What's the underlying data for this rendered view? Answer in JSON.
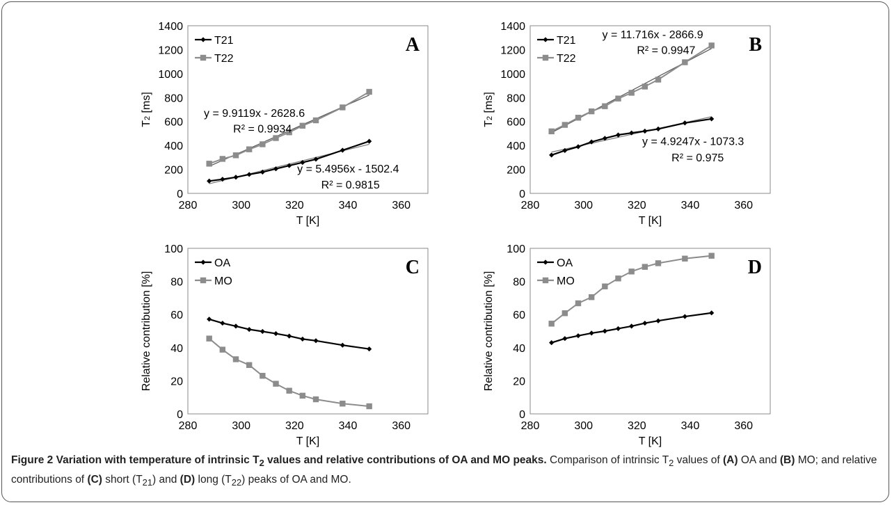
{
  "caption": {
    "title_pre": "Figure 2 Variation with temperature of intrinsic T",
    "title_sub": "2",
    "title_post": " values and relative contributions of OA and MO peaks.",
    "t1": " Comparison of intrinsic T",
    "t1_sub": "2",
    "t2": " values of ",
    "bA": "(A)",
    "t3": " OA and ",
    "bB": "(B)",
    "t4": " MO; and relative contributions of ",
    "bC": "(C)",
    "t5": " short (T",
    "t5_sub": "21",
    "t6": ") and ",
    "bD": "(D)",
    "t7": " long (T",
    "t7_sub": "22",
    "t8": ") peaks of OA and MO."
  },
  "chart_data": [
    {
      "panel": "A",
      "type": "line",
      "xlabel": "T [K]",
      "ylabel_main": "T",
      "ylabel_sub": "2",
      "ylabel_unit": " [ms]",
      "xlim": [
        280,
        370
      ],
      "ylim": [
        0,
        1400
      ],
      "xticks": [
        280,
        300,
        320,
        340,
        360
      ],
      "yticks": [
        0,
        200,
        400,
        600,
        800,
        1000,
        1200,
        1400
      ],
      "legend_position": "top-left",
      "series": [
        {
          "name": "T21",
          "color": "#000000",
          "marker": "diamond",
          "x": [
            288,
            293,
            298,
            303,
            308,
            313,
            318,
            323,
            328,
            338,
            348
          ],
          "y": [
            103,
            118,
            135,
            158,
            178,
            205,
            232,
            258,
            285,
            360,
            435
          ],
          "trendline": {
            "slope": 5.4956,
            "intercept": -1502.4,
            "color": "#777777"
          }
        },
        {
          "name": "T22",
          "color": "#8c8c8c",
          "marker": "square",
          "x": [
            288,
            293,
            298,
            303,
            308,
            313,
            318,
            323,
            328,
            338,
            348
          ],
          "y": [
            248,
            288,
            318,
            368,
            410,
            462,
            510,
            565,
            610,
            718,
            848
          ],
          "trendline": {
            "slope": 9.9119,
            "intercept": -2628.6,
            "color": "#555555"
          }
        }
      ],
      "annotations": [
        {
          "eq": "y = 9.9119x - 2628.6",
          "r2": "R² = 0.9934",
          "at": [
            286,
            640
          ],
          "r2_at": [
            297,
            508
          ]
        },
        {
          "eq": "y = 5.4956x - 1502.4",
          "r2": "R² = 0.9815",
          "at": [
            321,
            175
          ],
          "r2_at": [
            330,
            40
          ]
        }
      ]
    },
    {
      "panel": "B",
      "type": "line",
      "xlabel": "T [K]",
      "ylabel_main": "T",
      "ylabel_sub": "2",
      "ylabel_unit": " [ms]",
      "xlim": [
        280,
        370
      ],
      "ylim": [
        0,
        1400
      ],
      "xticks": [
        280,
        300,
        320,
        340,
        360
      ],
      "yticks": [
        0,
        200,
        400,
        600,
        800,
        1000,
        1200,
        1400
      ],
      "legend_position": "top-left",
      "series": [
        {
          "name": "T21",
          "color": "#000000",
          "marker": "diamond",
          "x": [
            288,
            293,
            298,
            303,
            308,
            313,
            318,
            323,
            328,
            338,
            348
          ],
          "y": [
            320,
            358,
            390,
            430,
            460,
            488,
            505,
            520,
            538,
            588,
            622
          ],
          "trendline": {
            "slope": 4.9247,
            "intercept": -1073.3,
            "color": "#777777"
          }
        },
        {
          "name": "T22",
          "color": "#8c8c8c",
          "marker": "square",
          "x": [
            288,
            293,
            298,
            303,
            308,
            313,
            318,
            323,
            328,
            338,
            348
          ],
          "y": [
            518,
            572,
            632,
            685,
            728,
            792,
            840,
            892,
            950,
            1095,
            1235
          ],
          "trendline": {
            "slope": 11.716,
            "intercept": -2866.9,
            "color": "#555555"
          }
        }
      ],
      "annotations": [
        {
          "eq": "y = 11.716x - 2866.9",
          "r2": "R² = 0.9947",
          "at": [
            307,
            1295
          ],
          "r2_at": [
            320,
            1165
          ]
        },
        {
          "eq": "y = 4.9247x - 1073.3",
          "r2": "R² = 0.975",
          "at": [
            322,
            405
          ],
          "r2_at": [
            333,
            268
          ]
        }
      ]
    },
    {
      "panel": "C",
      "type": "line",
      "xlabel": "T [K]",
      "ylabel": "Relative contribution [%]",
      "xlim": [
        280,
        370
      ],
      "ylim": [
        0,
        100
      ],
      "xticks": [
        280,
        300,
        320,
        340,
        360
      ],
      "yticks": [
        0,
        20,
        40,
        60,
        80,
        100
      ],
      "legend_position": "top-left",
      "series": [
        {
          "name": "OA",
          "color": "#000000",
          "marker": "diamond",
          "x": [
            288,
            293,
            298,
            303,
            308,
            313,
            318,
            323,
            328,
            338,
            348
          ],
          "y": [
            57.2,
            54.8,
            53.0,
            51.0,
            49.8,
            48.5,
            47.0,
            45.2,
            44.2,
            41.5,
            39.2
          ]
        },
        {
          "name": "MO",
          "color": "#8c8c8c",
          "marker": "square",
          "x": [
            288,
            293,
            298,
            303,
            308,
            313,
            318,
            323,
            328,
            338,
            348
          ],
          "y": [
            45.5,
            38.8,
            33.0,
            29.5,
            23.0,
            18.2,
            14.0,
            11.0,
            8.8,
            6.2,
            4.6
          ]
        }
      ]
    },
    {
      "panel": "D",
      "type": "line",
      "xlabel": "T [K]",
      "ylabel": "Relative contribution [%]",
      "xlim": [
        280,
        370
      ],
      "ylim": [
        0,
        100
      ],
      "xticks": [
        280,
        300,
        320,
        340,
        360
      ],
      "yticks": [
        0,
        20,
        40,
        60,
        80,
        100
      ],
      "legend_position": "top-left",
      "series": [
        {
          "name": "OA",
          "color": "#000000",
          "marker": "diamond",
          "x": [
            288,
            293,
            298,
            303,
            308,
            313,
            318,
            323,
            328,
            338,
            348
          ],
          "y": [
            43.0,
            45.5,
            47.2,
            48.8,
            50.0,
            51.5,
            53.0,
            54.8,
            56.2,
            58.8,
            61.0
          ]
        },
        {
          "name": "MO",
          "color": "#8c8c8c",
          "marker": "square",
          "x": [
            288,
            293,
            298,
            303,
            308,
            313,
            318,
            323,
            328,
            338,
            348
          ],
          "y": [
            54.5,
            60.8,
            66.8,
            70.5,
            77.0,
            81.8,
            86.0,
            88.8,
            91.0,
            93.8,
            95.5
          ]
        }
      ]
    }
  ]
}
